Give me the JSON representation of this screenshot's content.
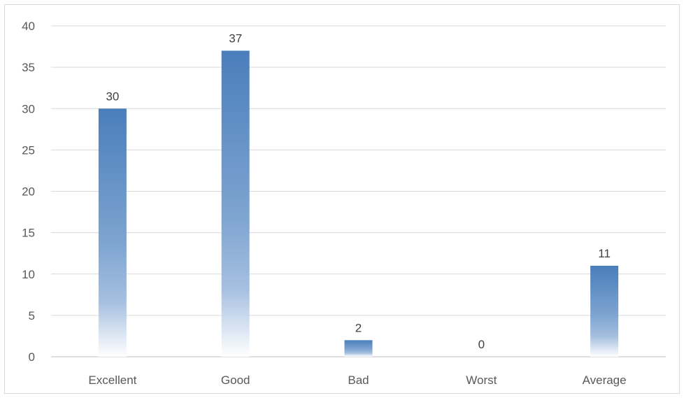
{
  "chart_data": {
    "type": "bar",
    "title": "",
    "xlabel": "",
    "ylabel": "",
    "categories": [
      "Excellent",
      "Good",
      "Bad",
      "Worst",
      "Average"
    ],
    "values": [
      30,
      37,
      2,
      0,
      11
    ],
    "data_labels": [
      "30",
      "37",
      "2",
      "0",
      "11"
    ],
    "ylim": [
      0,
      40
    ],
    "yticks": [
      0,
      5,
      10,
      15,
      20,
      25,
      30,
      35,
      40
    ],
    "ytick_labels": [
      "0",
      "5",
      "10",
      "15",
      "20",
      "25",
      "30",
      "35",
      "40"
    ],
    "grid": true,
    "legend": "none",
    "bar_color": "#4a7ebb",
    "bar_fill": "gradient fading to white at base",
    "gridline_color": "#d9d9d9",
    "text_color": "#595959"
  }
}
